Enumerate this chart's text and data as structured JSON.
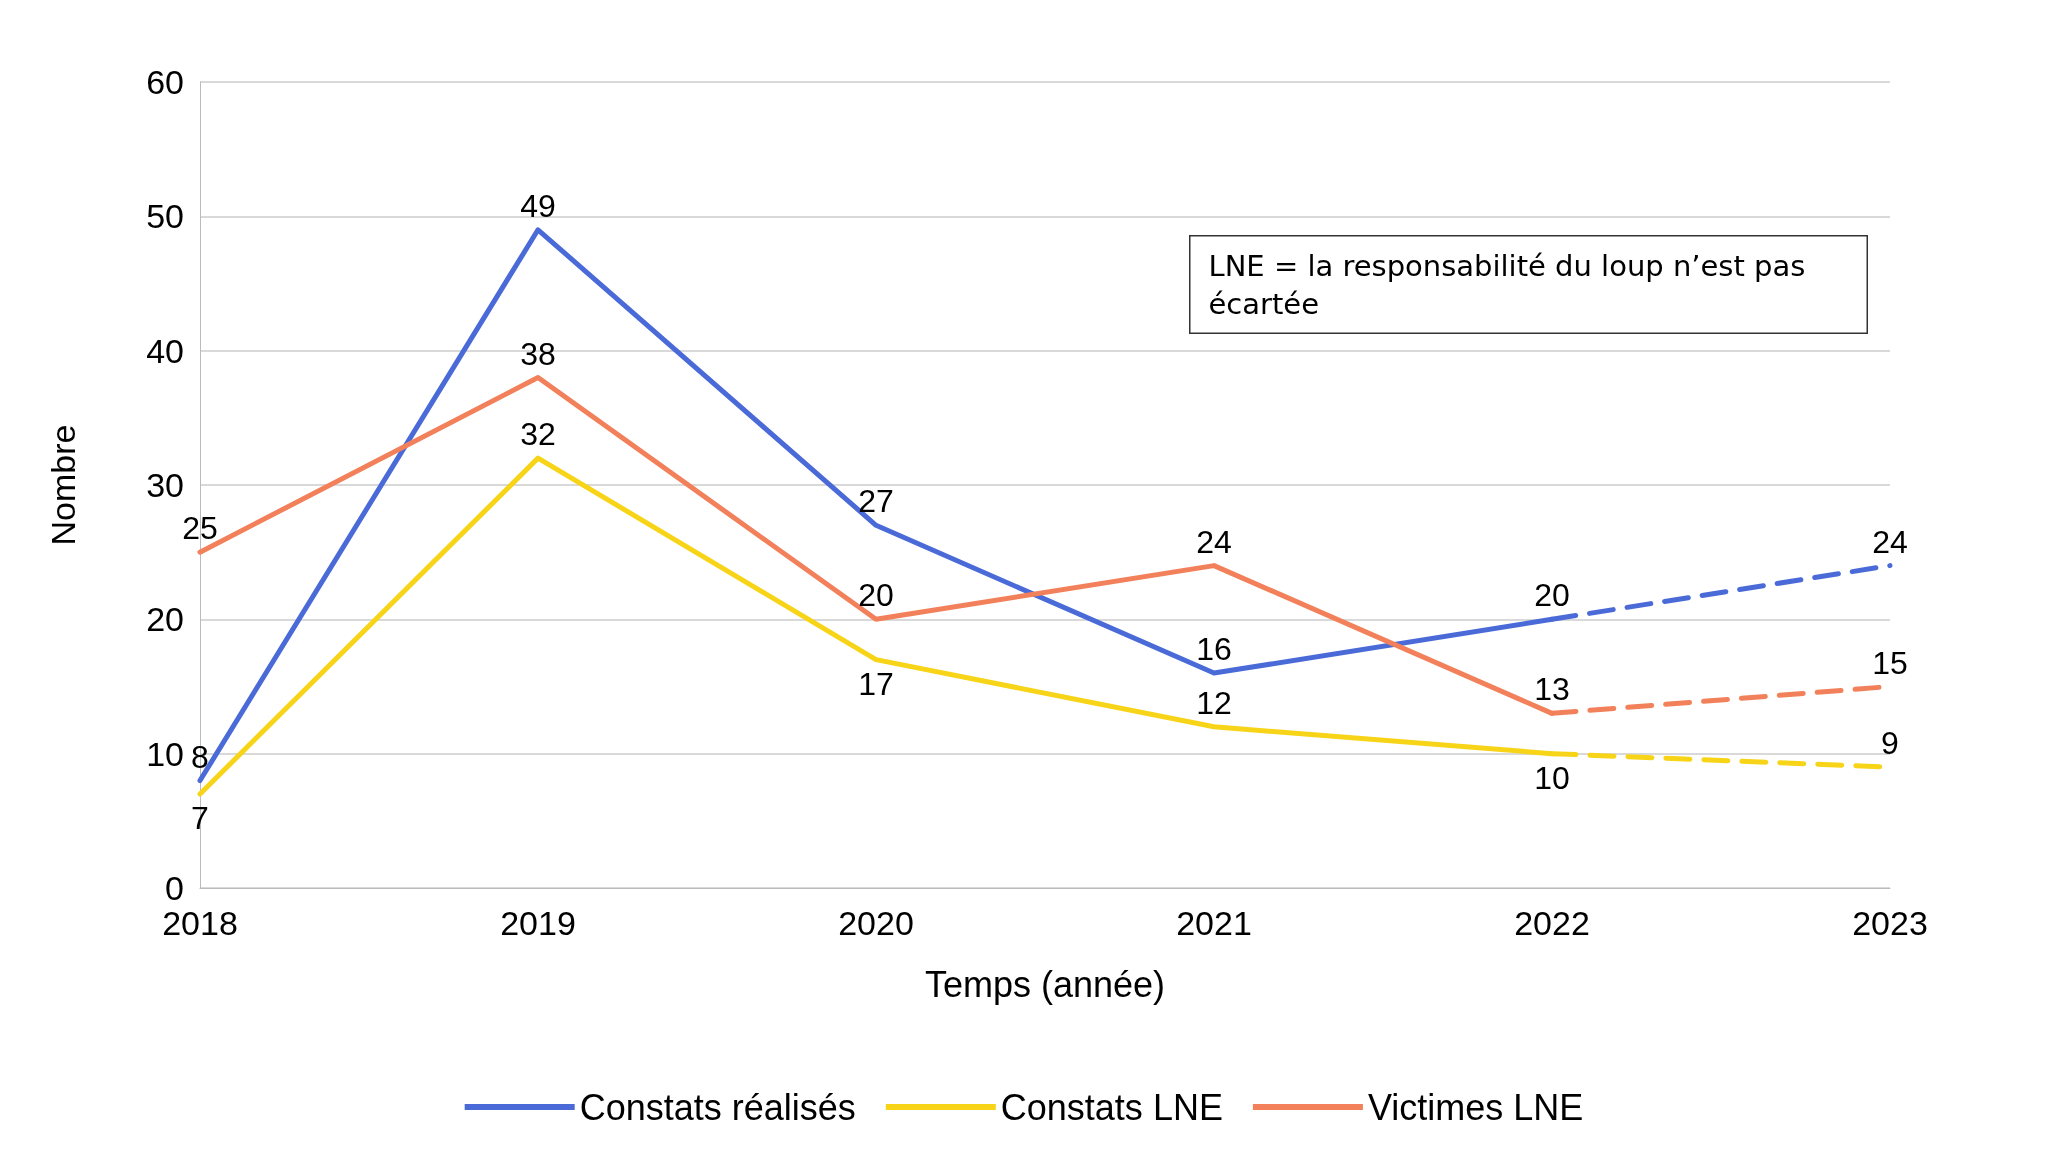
{
  "chart_data": {
    "type": "line",
    "xlabel": "Temps (année)",
    "ylabel": "Nombre",
    "annotations": [
      "LNE = la responsabilité du loup n’est pas écartée"
    ],
    "xlim": [
      2018,
      2023
    ],
    "xticks": [
      2018,
      2019,
      2020,
      2021,
      2022,
      2023
    ],
    "ylim": [
      0,
      60
    ],
    "yticks": [
      0,
      10,
      20,
      30,
      40,
      50,
      60
    ],
    "grid": "y",
    "legend": "bottom",
    "marker": "none",
    "data_labels": true,
    "series": [
      {
        "name": "Constats réalisés",
        "color": "#4a6ad8",
        "x": [
          2018,
          2019,
          2020,
          2021,
          2022
        ],
        "values": [
          8,
          49,
          27,
          16,
          20
        ],
        "line_style": "solid"
      },
      {
        "name": "Constats LNE",
        "color": "#f7d417",
        "x": [
          2018,
          2019,
          2020,
          2021,
          2022
        ],
        "values": [
          7,
          32,
          17,
          12,
          10
        ],
        "line_style": "solid"
      },
      {
        "name": "Victimes LNE",
        "color": "#f2805a",
        "x": [
          2018,
          2019,
          2020,
          2021,
          2022
        ],
        "values": [
          25,
          38,
          20,
          24,
          13
        ],
        "line_style": "solid"
      },
      {
        "color": "#4a6ad8",
        "x": [
          2022,
          2023
        ],
        "values": [
          20,
          24
        ],
        "line_style": "dashed",
        "value_labels": [
          null,
          "24"
        ]
      },
      {
        "color": "#f7d417",
        "x": [
          2022,
          2023
        ],
        "values": [
          10,
          9
        ],
        "line_style": "dashed",
        "value_labels": [
          null,
          "9"
        ]
      },
      {
        "color": "#f2805a",
        "x": [
          2022,
          2023
        ],
        "values": [
          13,
          15
        ],
        "line_style": "dashed",
        "value_labels": [
          null,
          "15"
        ]
      }
    ]
  }
}
